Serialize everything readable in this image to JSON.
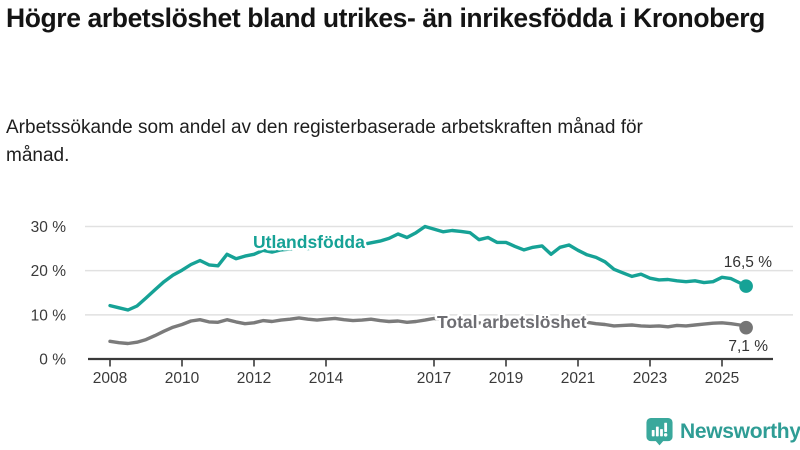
{
  "header": {
    "title": "Högre arbetslöshet bland utrikes- än inrikesfödda i Kronoberg",
    "subtitle": "Arbetssökande som andel av den registerbaserade arbetskraften månad för månad."
  },
  "chart_data": {
    "type": "line",
    "title": "Högre arbetslöshet bland utrikes- än inrikesfödda i Kronoberg",
    "subtitle": "Arbetssökande som andel av den registerbaserade arbetskraften månad för månad.",
    "grid": "horizontal",
    "legend_position": "inline-labels",
    "xlim": [
      2008,
      2025.7
    ],
    "ylim": [
      0,
      30
    ],
    "x_ticks": [
      2008,
      2010,
      2012,
      2014,
      2017,
      2019,
      2021,
      2023,
      2025
    ],
    "x_tick_labels": [
      "2008",
      "2010",
      "2012",
      "2014",
      "2017",
      "2019",
      "2021",
      "2023",
      "2025"
    ],
    "y_ticks": [
      0,
      10,
      20,
      30
    ],
    "y_tick_labels": [
      "0 %",
      "10 %",
      "20 %",
      "30 %"
    ],
    "x": [
      2008,
      2008.25,
      2008.5,
      2008.75,
      2009,
      2009.25,
      2009.5,
      2009.75,
      2010,
      2010.25,
      2010.5,
      2010.75,
      2011,
      2011.25,
      2011.5,
      2011.75,
      2012,
      2012.25,
      2012.5,
      2012.75,
      2013,
      2013.25,
      2013.5,
      2013.75,
      2014,
      2014.25,
      2014.5,
      2014.75,
      2015,
      2015.25,
      2015.5,
      2015.75,
      2016,
      2016.25,
      2016.5,
      2016.75,
      2017,
      2017.25,
      2017.5,
      2017.75,
      2018,
      2018.25,
      2018.5,
      2018.75,
      2019,
      2019.25,
      2019.5,
      2019.75,
      2020,
      2020.25,
      2020.5,
      2020.75,
      2021,
      2021.25,
      2021.5,
      2021.75,
      2022,
      2022.25,
      2022.5,
      2022.75,
      2023,
      2023.25,
      2023.5,
      2023.75,
      2024,
      2024.25,
      2024.5,
      2024.75,
      2025,
      2025.25,
      2025.5,
      2025.67
    ],
    "series": [
      {
        "id": "utlandsfodda",
        "name": "Utlandsfödda",
        "color": "#16a296",
        "label_color": "#16a296",
        "end_label": "16,5 %",
        "end_value": 16.5,
        "values": [
          12.1,
          11.6,
          11.1,
          12.0,
          13.8,
          15.7,
          17.5,
          19.0,
          20.1,
          21.4,
          22.3,
          21.3,
          21.1,
          23.7,
          22.7,
          23.3,
          23.7,
          24.6,
          24.2,
          24.7,
          24.9,
          25.2,
          25.0,
          25.3,
          25.4,
          25.6,
          25.4,
          25.7,
          25.9,
          26.3,
          26.7,
          27.3,
          28.3,
          27.5,
          28.6,
          30.0,
          29.4,
          28.8,
          29.1,
          28.9,
          28.6,
          27.0,
          27.5,
          26.4,
          26.4,
          25.5,
          24.7,
          25.3,
          25.6,
          23.7,
          25.3,
          25.8,
          24.6,
          23.6,
          23.0,
          22.0,
          20.3,
          19.5,
          18.7,
          19.2,
          18.3,
          17.9,
          18.0,
          17.7,
          17.5,
          17.7,
          17.3,
          17.5,
          18.5,
          18.2,
          17.2,
          16.5
        ]
      },
      {
        "id": "total-arbetsloshet",
        "name": "Total arbetslöshet",
        "color": "#7b7b7b",
        "label_color": "#6d6d72",
        "end_label": "7,1 %",
        "end_value": 7.1,
        "values": [
          4.0,
          3.7,
          3.5,
          3.8,
          4.4,
          5.3,
          6.3,
          7.2,
          7.8,
          8.6,
          8.9,
          8.4,
          8.3,
          8.9,
          8.4,
          8.0,
          8.2,
          8.7,
          8.5,
          8.8,
          9.0,
          9.3,
          9.0,
          8.8,
          9.0,
          9.2,
          8.9,
          8.7,
          8.8,
          9.0,
          8.7,
          8.5,
          8.6,
          8.3,
          8.5,
          8.8,
          9.2,
          8.9,
          8.7,
          8.5,
          8.4,
          8.2,
          8.1,
          8.0,
          7.9,
          7.8,
          7.7,
          7.8,
          8.0,
          8.6,
          8.9,
          8.7,
          8.5,
          8.3,
          8.0,
          7.8,
          7.5,
          7.6,
          7.7,
          7.5,
          7.4,
          7.5,
          7.3,
          7.6,
          7.5,
          7.7,
          7.9,
          8.1,
          8.2,
          8.0,
          7.7,
          7.1
        ]
      }
    ],
    "colors": {
      "grid": "#e1e1e1",
      "axis": "#3a3a3a",
      "tick_label": "#3a3a3a",
      "end_label_text": "#333333"
    }
  },
  "footer": {
    "brand": "Newsworthy"
  }
}
